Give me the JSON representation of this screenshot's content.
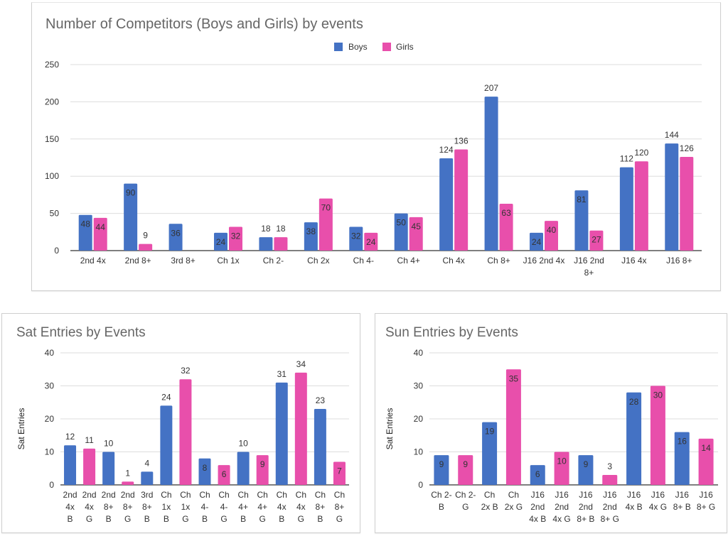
{
  "colors": {
    "boys": "#4472c4",
    "girls": "#e84fab",
    "label_outside_boys": "#4a7ab8",
    "label_outside_girls": "#d95fa6",
    "label_inside_boys": "#ffffff",
    "label_inside_girls": "#3a0d2a"
  },
  "chart_data": [
    {
      "id": "competitors",
      "type": "bar",
      "title": "Number of Competitors (Boys and Girls) by events",
      "xlabel": "",
      "ylabel": "",
      "ylim": [
        0,
        250
      ],
      "yticks": [
        0,
        50,
        100,
        150,
        200,
        250
      ],
      "grid": true,
      "legend": {
        "position": "top-center",
        "entries": [
          "Boys",
          "Girls"
        ]
      },
      "categories": [
        "2nd 4x",
        "2nd 8+",
        "3rd 8+",
        "Ch 1x",
        "Ch 2-",
        "Ch 2x",
        "Ch 4-",
        "Ch 4+",
        "Ch 4x",
        "Ch 8+",
        "J16 2nd 4x",
        "J16 2nd 8+",
        "J16 4x",
        "J16 8+"
      ],
      "series": [
        {
          "name": "Boys",
          "values": [
            48,
            90,
            36,
            24,
            18,
            38,
            32,
            50,
            124,
            207,
            24,
            81,
            112,
            144
          ]
        },
        {
          "name": "Girls",
          "values": [
            44,
            9,
            null,
            32,
            18,
            70,
            24,
            45,
            136,
            63,
            40,
            27,
            120,
            126
          ]
        }
      ]
    },
    {
      "id": "sat",
      "type": "bar",
      "title": "Sat Entries by Events",
      "xlabel": "",
      "ylabel": "Sat Entries",
      "ylim": [
        0,
        40
      ],
      "yticks": [
        0,
        10,
        20,
        30,
        40
      ],
      "grid": true,
      "legend": null,
      "categories": [
        "2nd 4x B",
        "2nd 4x G",
        "2nd 8+ B",
        "2nd 8+ G",
        "3rd 8+ B",
        "Ch 1x B",
        "Ch 1x G",
        "Ch 4- B",
        "Ch 4- G",
        "Ch 4+ B",
        "Ch 4+ G",
        "Ch 4x B",
        "Ch 4x G",
        "Ch 8+ B",
        "Ch 8+ G"
      ],
      "values": [
        12,
        11,
        10,
        1,
        4,
        24,
        32,
        8,
        6,
        10,
        9,
        31,
        34,
        23,
        7
      ],
      "gender": [
        "B",
        "G",
        "B",
        "G",
        "B",
        "B",
        "G",
        "B",
        "G",
        "B",
        "G",
        "B",
        "G",
        "B",
        "G"
      ]
    },
    {
      "id": "sun",
      "type": "bar",
      "title": "Sun Entries by Events",
      "xlabel": "",
      "ylabel": "Sat Entries",
      "ylim": [
        0,
        40
      ],
      "yticks": [
        0,
        10,
        20,
        30,
        40
      ],
      "grid": true,
      "legend": null,
      "categories": [
        "Ch 2- B",
        "Ch 2- G",
        "Ch 2x B",
        "Ch 2x G",
        "J16 2nd 4x B",
        "J16 2nd 4x G",
        "J16 2nd 8+ B",
        "J16 2nd 8+ G",
        "J16 4x B",
        "J16 4x G",
        "J16 8+ B",
        "J16 8+ G"
      ],
      "values": [
        9,
        9,
        19,
        35,
        6,
        10,
        9,
        3,
        28,
        30,
        16,
        14
      ],
      "gender": [
        "B",
        "G",
        "B",
        "G",
        "B",
        "G",
        "B",
        "G",
        "B",
        "G",
        "B",
        "G"
      ]
    }
  ],
  "layout_labels": {
    "competitors": {
      "category_lines": [
        [
          "2nd 4x"
        ],
        [
          "2nd 8+"
        ],
        [
          "3rd 8+"
        ],
        [
          "Ch 1x"
        ],
        [
          "Ch 2-"
        ],
        [
          "Ch 2x"
        ],
        [
          "Ch 4-"
        ],
        [
          "Ch 4+"
        ],
        [
          "Ch 4x"
        ],
        [
          "Ch 8+"
        ],
        [
          "J16 2nd 4x"
        ],
        [
          "J16 2nd",
          "8+"
        ],
        [
          "J16 4x"
        ],
        [
          "J16 8+"
        ]
      ],
      "label_inside_boys": [
        true,
        true,
        true,
        true,
        false,
        true,
        true,
        true,
        false,
        false,
        true,
        true,
        false,
        false
      ],
      "label_inside_girls": [
        true,
        false,
        false,
        true,
        false,
        true,
        true,
        true,
        false,
        true,
        true,
        true,
        false,
        false
      ]
    },
    "sat": {
      "category_lines": [
        [
          "2nd",
          "4x",
          "B"
        ],
        [
          "2nd",
          "4x",
          "G"
        ],
        [
          "2nd",
          "8+",
          "B"
        ],
        [
          "2nd",
          "8+",
          "G"
        ],
        [
          "3rd",
          "8+",
          "B"
        ],
        [
          "Ch",
          "1x",
          "B"
        ],
        [
          "Ch",
          "1x",
          "G"
        ],
        [
          "Ch",
          "4-",
          "B"
        ],
        [
          "Ch",
          "4-",
          "G"
        ],
        [
          "Ch",
          "4+",
          "B"
        ],
        [
          "Ch",
          "4+",
          "G"
        ],
        [
          "Ch",
          "4x",
          "B"
        ],
        [
          "Ch",
          "4x",
          "G"
        ],
        [
          "Ch",
          "8+",
          "B"
        ],
        [
          "Ch",
          "8+",
          "G"
        ]
      ],
      "label_inside": [
        false,
        false,
        false,
        false,
        false,
        false,
        false,
        true,
        true,
        false,
        true,
        false,
        false,
        false,
        true
      ]
    },
    "sun": {
      "category_lines": [
        [
          "Ch 2-",
          "B"
        ],
        [
          "Ch 2-",
          "G"
        ],
        [
          "Ch",
          "2x B"
        ],
        [
          "Ch",
          "2x G"
        ],
        [
          "J16",
          "2nd",
          "4x B"
        ],
        [
          "J16",
          "2nd",
          "4x G"
        ],
        [
          "J16",
          "2nd",
          "8+ B"
        ],
        [
          "J16",
          "2nd",
          "8+ G"
        ],
        [
          "J16",
          "4x B"
        ],
        [
          "J16",
          "4x G"
        ],
        [
          "J16",
          "8+ B"
        ],
        [
          "J16",
          "8+ G"
        ]
      ],
      "label_inside": [
        true,
        true,
        true,
        true,
        true,
        true,
        true,
        false,
        true,
        true,
        true,
        true
      ]
    }
  }
}
